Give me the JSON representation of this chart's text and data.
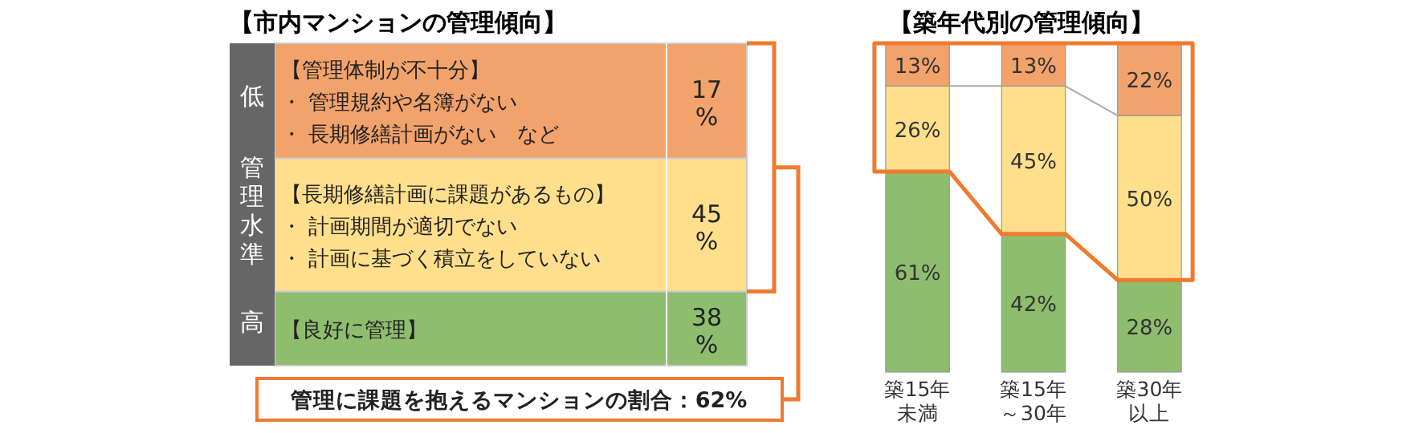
{
  "chart_data": [
    {
      "type": "other",
      "title": "【市内マンションの管理傾向】",
      "categories": [
        "【管理体制が不十分】・管理規約や名簿がない・長期修繕計画がない　など",
        "【長期修繕計画に課題があるもの】・計画期間が適切でない・計画に基づく積立をしていない",
        "【良好に管理】"
      ],
      "values": [
        17,
        45,
        38
      ],
      "value_labels": [
        "17%",
        "45%",
        "38%"
      ],
      "colors": [
        "#f2a26b",
        "#ffdf8c",
        "#8fbd6e"
      ],
      "annotations": [
        "低",
        "管理水準",
        "高",
        "管理に課題を抱えるマンションの割合：62%"
      ]
    },
    {
      "type": "bar",
      "title": "【築年代別の管理傾向】",
      "stacked": true,
      "categories": [
        "築15年未満",
        "築15年～30年",
        "築30年以上"
      ],
      "tick_labels": "x",
      "series": [
        {
          "color": "#8fbd6e",
          "values": [
            61,
            42,
            28
          ],
          "value_labels": [
            "61%",
            "42%",
            "28%"
          ]
        },
        {
          "color": "#ffdf8c",
          "values": [
            26,
            45,
            50
          ],
          "value_labels": [
            "26%",
            "45%",
            "50%"
          ]
        },
        {
          "color": "#f2a26b",
          "values": [
            13,
            13,
            22
          ],
          "value_labels": [
            "13%",
            "13%",
            "22%"
          ]
        }
      ]
    }
  ]
}
